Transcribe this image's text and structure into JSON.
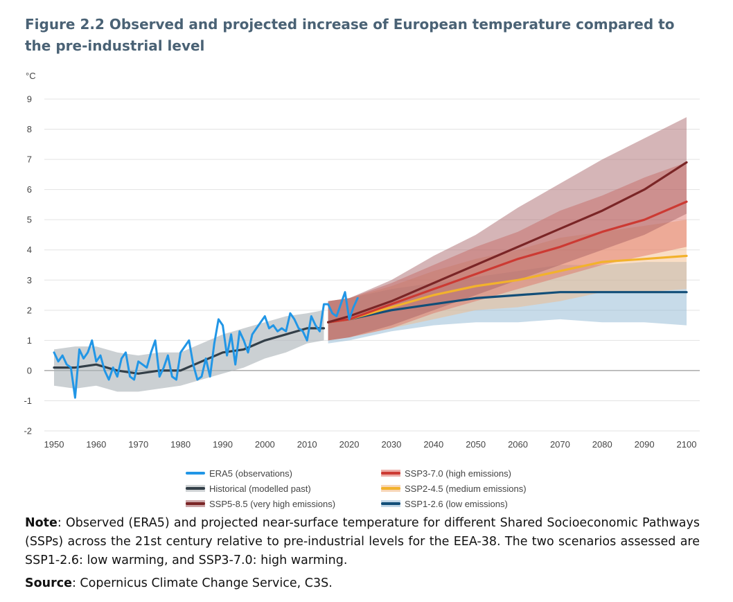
{
  "figure": {
    "title": "Figure 2.2 Observed and projected increase of European temperature compared to the pre-industrial level",
    "unit": "°C"
  },
  "colors": {
    "era5": "#2196e6",
    "historical": "#333f48",
    "historical_band": "#a9b0b5",
    "ssp585": "#7a2526",
    "ssp585_band": "#a15b5f",
    "ssp370": "#cc3a33",
    "ssp370_band": "#dd6a60",
    "ssp245": "#f2b22c",
    "ssp245_band": "#f3b67e",
    "ssp126": "#124e78",
    "ssp126_band": "#8fb7d4",
    "grid": "#e3e3e3",
    "axis_zero": "#9a9a9a"
  },
  "chart_data": {
    "type": "line",
    "ylabel": "°C",
    "xlim": [
      1950,
      2100
    ],
    "ylim": [
      -2,
      9
    ],
    "x_ticks": [
      1950,
      1960,
      1970,
      1980,
      1990,
      2000,
      2010,
      2020,
      2030,
      2040,
      2050,
      2060,
      2070,
      2080,
      2090,
      2100
    ],
    "y_ticks": [
      -2,
      -1,
      0,
      1,
      2,
      3,
      4,
      5,
      6,
      7,
      8,
      9
    ],
    "grid": "horizontal",
    "legend_position": "bottom",
    "series": [
      {
        "key": "era5",
        "name": "ERA5 (observations)",
        "x": [
          1950,
          1951,
          1952,
          1953,
          1954,
          1955,
          1956,
          1957,
          1958,
          1959,
          1960,
          1961,
          1962,
          1963,
          1964,
          1965,
          1966,
          1967,
          1968,
          1969,
          1970,
          1971,
          1972,
          1973,
          1974,
          1975,
          1976,
          1977,
          1978,
          1979,
          1980,
          1981,
          1982,
          1983,
          1984,
          1985,
          1986,
          1987,
          1988,
          1989,
          1990,
          1991,
          1992,
          1993,
          1994,
          1995,
          1996,
          1997,
          1998,
          1999,
          2000,
          2001,
          2002,
          2003,
          2004,
          2005,
          2006,
          2007,
          2008,
          2009,
          2010,
          2011,
          2012,
          2013,
          2014,
          2015,
          2016,
          2017,
          2018,
          2019,
          2020,
          2021,
          2022
        ],
        "values": [
          0.6,
          0.3,
          0.5,
          0.2,
          0.1,
          -0.9,
          0.7,
          0.4,
          0.6,
          1.0,
          0.3,
          0.5,
          0.0,
          -0.3,
          0.1,
          -0.2,
          0.4,
          0.6,
          -0.2,
          -0.3,
          0.3,
          0.2,
          0.1,
          0.6,
          1.0,
          -0.2,
          0.1,
          0.5,
          -0.2,
          -0.3,
          0.6,
          0.8,
          1.0,
          0.2,
          -0.3,
          -0.2,
          0.4,
          -0.2,
          0.9,
          1.7,
          1.5,
          0.5,
          1.2,
          0.2,
          1.3,
          1.0,
          0.6,
          1.2,
          1.4,
          1.6,
          1.8,
          1.4,
          1.5,
          1.3,
          1.4,
          1.3,
          1.9,
          1.7,
          1.4,
          1.3,
          1.0,
          1.8,
          1.5,
          1.3,
          2.2,
          2.2,
          1.9,
          1.8,
          2.2,
          2.6,
          1.7,
          2.1,
          2.4
        ]
      },
      {
        "key": "historical",
        "name": "Historical (modelled past)",
        "x": [
          1950,
          1955,
          1960,
          1965,
          1970,
          1975,
          1980,
          1985,
          1990,
          1995,
          2000,
          2005,
          2010,
          2014
        ],
        "values": [
          0.1,
          0.1,
          0.2,
          0.0,
          -0.1,
          0.0,
          0.0,
          0.3,
          0.6,
          0.7,
          1.0,
          1.2,
          1.4,
          1.4
        ],
        "band_low": [
          -0.5,
          -0.6,
          -0.5,
          -0.7,
          -0.7,
          -0.6,
          -0.5,
          -0.3,
          -0.1,
          0.1,
          0.4,
          0.6,
          0.9,
          1.0
        ],
        "band_high": [
          0.7,
          0.8,
          0.8,
          0.6,
          0.5,
          0.6,
          0.6,
          0.9,
          1.2,
          1.4,
          1.6,
          1.8,
          1.9,
          2.0
        ]
      },
      {
        "key": "ssp585",
        "name": "SSP5-8.5 (very high emissions)",
        "x": [
          2015,
          2020,
          2030,
          2040,
          2050,
          2060,
          2070,
          2080,
          2090,
          2100
        ],
        "values": [
          1.6,
          1.8,
          2.3,
          2.9,
          3.5,
          4.1,
          4.7,
          5.3,
          6.0,
          6.9
        ],
        "band_low": [
          1.0,
          1.1,
          1.5,
          2.0,
          2.5,
          3.0,
          3.5,
          4.0,
          4.5,
          5.2
        ],
        "band_high": [
          2.3,
          2.4,
          3.0,
          3.8,
          4.5,
          5.4,
          6.2,
          7.0,
          7.7,
          8.4
        ]
      },
      {
        "key": "ssp370",
        "name": "SSP3-7.0 (high emissions)",
        "x": [
          2015,
          2020,
          2030,
          2040,
          2050,
          2060,
          2070,
          2080,
          2090,
          2100
        ],
        "values": [
          1.6,
          1.7,
          2.2,
          2.7,
          3.2,
          3.7,
          4.1,
          4.6,
          5.0,
          5.6
        ],
        "band_low": [
          1.0,
          1.1,
          1.4,
          1.9,
          2.3,
          2.7,
          3.1,
          3.5,
          3.8,
          4.1
        ],
        "band_high": [
          2.3,
          2.4,
          2.9,
          3.5,
          4.1,
          4.6,
          5.3,
          5.8,
          6.4,
          6.9
        ]
      },
      {
        "key": "ssp245",
        "name": "SSP2-4.5 (medium emissions)",
        "x": [
          2015,
          2020,
          2030,
          2040,
          2050,
          2060,
          2070,
          2080,
          2090,
          2100
        ],
        "values": [
          1.6,
          1.7,
          2.1,
          2.5,
          2.8,
          3.0,
          3.3,
          3.6,
          3.7,
          3.8
        ],
        "band_low": [
          1.0,
          1.1,
          1.4,
          1.7,
          2.0,
          2.1,
          2.3,
          2.6,
          2.6,
          2.7
        ],
        "band_high": [
          2.3,
          2.4,
          2.8,
          3.3,
          3.7,
          4.0,
          4.4,
          4.6,
          4.8,
          5.0
        ]
      },
      {
        "key": "ssp126",
        "name": "SSP1-2.6 (low emissions)",
        "x": [
          2015,
          2020,
          2030,
          2040,
          2050,
          2060,
          2070,
          2080,
          2090,
          2100
        ],
        "values": [
          1.6,
          1.7,
          2.0,
          2.2,
          2.4,
          2.5,
          2.6,
          2.6,
          2.6,
          2.6
        ],
        "band_low": [
          0.9,
          1.0,
          1.3,
          1.5,
          1.6,
          1.6,
          1.7,
          1.6,
          1.6,
          1.5
        ],
        "band_high": [
          2.3,
          2.4,
          2.7,
          2.9,
          3.1,
          3.3,
          3.5,
          3.5,
          3.6,
          3.6
        ]
      }
    ]
  },
  "legend": {
    "era5": "ERA5 (observations)",
    "historical": "Historical (modelled past)",
    "ssp585": "SSP5-8.5 (very high emissions)",
    "ssp370": "SSP3-7.0 (high emissions)",
    "ssp245": "SSP2-4.5 (medium emissions)",
    "ssp126": "SSP1-2.6 (low emissions)"
  },
  "note": {
    "label": "Note",
    "text": ": Observed (ERA5) and projected near-surface temperature for different Shared Socioeconomic Pathways (SSPs) across the 21st century relative to pre-industrial levels for the EEA-38. The two scenarios assessed are SSP1-2.6: low warming, and SSP3-7.0: high warming."
  },
  "source": {
    "label": "Source",
    "text": ": Copernicus Climate Change Service, C3S."
  }
}
